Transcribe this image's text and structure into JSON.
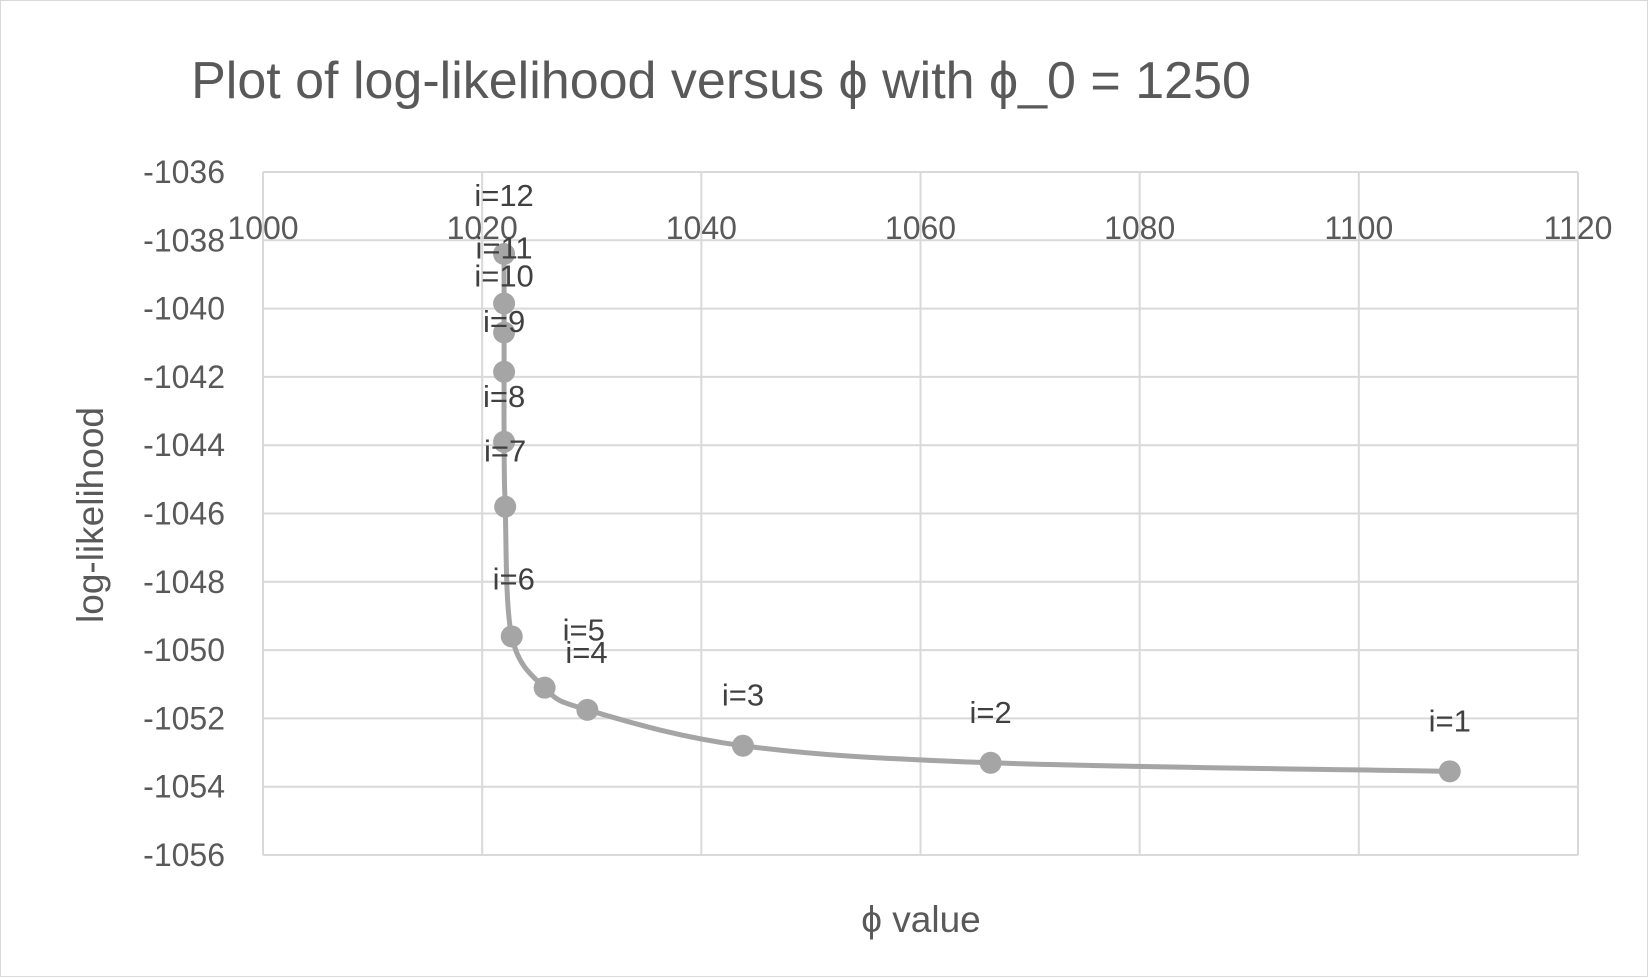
{
  "chart_data": {
    "type": "scatter",
    "title": "Plot of log-likelihood versus ϕ with  ϕ_0 = 1250",
    "xlabel": "ϕ value",
    "ylabel": "log-likelihood",
    "xlim": [
      1000,
      1120
    ],
    "ylim": [
      -1056,
      -1036
    ],
    "x_ticks": [
      "1000",
      "1020",
      "1040",
      "1060",
      "1080",
      "1100",
      "1120"
    ],
    "y_ticks": [
      "-1036",
      "-1038",
      "-1040",
      "-1042",
      "-1044",
      "-1046",
      "-1048",
      "-1050",
      "-1052",
      "-1054",
      "-1056"
    ],
    "x_axis_position": "top",
    "grid": true,
    "legend": "none",
    "smooth_line": true,
    "series_color": "#a5a5a5",
    "points": [
      {
        "label": "i=1",
        "x": 1108.3,
        "y": -1053.55
      },
      {
        "label": "i=2",
        "x": 1066.4,
        "y": -1053.3
      },
      {
        "label": "i=3",
        "x": 1043.8,
        "y": -1052.8
      },
      {
        "label": "i=4",
        "x": 1029.6,
        "y": -1051.75
      },
      {
        "label": "i=5",
        "x": 1025.7,
        "y": -1051.1
      },
      {
        "label": "i=6",
        "x": 1022.7,
        "y": -1049.6
      },
      {
        "label": "i=7",
        "x": 1022.1,
        "y": -1045.8
      },
      {
        "label": "i=8",
        "x": 1022.0,
        "y": -1043.9
      },
      {
        "label": "i=9",
        "x": 1022.0,
        "y": -1041.85
      },
      {
        "label": "i=10",
        "x": 1022.0,
        "y": -1040.7
      },
      {
        "label": "i=11",
        "x": 1022.0,
        "y": -1039.85
      },
      {
        "label": "i=12",
        "x": 1022.0,
        "y": -1038.4
      }
    ]
  }
}
